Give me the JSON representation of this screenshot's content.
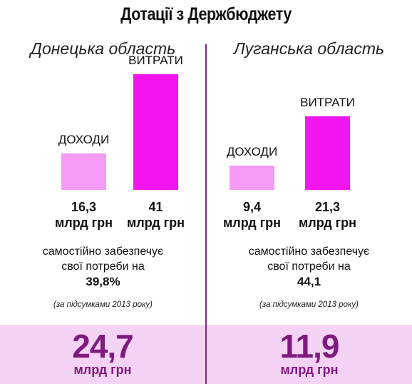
{
  "title": "Дотації з Держбюджету",
  "colors": {
    "income": "#f59af5",
    "expense": "#f215f0",
    "accent": "#7f1a7f",
    "band": "#f4d3f4",
    "divider": "#7d2a7e"
  },
  "chart_data": [
    {
      "type": "bar",
      "title": "Донецька область",
      "categories": [
        "ДОХОДИ",
        "ВИТРАТИ"
      ],
      "values": [
        16.3,
        41
      ],
      "value_labels": [
        [
          "16,3",
          "млрд грн"
        ],
        [
          "41",
          "млрд грн"
        ]
      ],
      "unit": "млрд грн"
    },
    {
      "type": "bar",
      "title": "Луганська область",
      "categories": [
        "ДОХОДИ",
        "ВИТРАТИ"
      ],
      "values": [
        9.4,
        21.3
      ],
      "value_labels": [
        [
          "9,4",
          "млрд грн"
        ],
        [
          "21,3",
          "млрд грн"
        ]
      ],
      "unit": "млрд грн"
    }
  ],
  "panels": [
    {
      "region": "Донецька область",
      "self_line1": "самостійно забезпечує",
      "self_line2": "свої потреби на",
      "self_value": "39,8%",
      "note": "(за підсумками 2013 року)",
      "subsidy_value": "24,7",
      "subsidy_unit": "млрд грн"
    },
    {
      "region": "Луганська область",
      "self_line1": "самостійно забезпечує",
      "self_line2": "свої потреби на",
      "self_value": "44,1",
      "note": "(за підсумками 2013 року)",
      "subsidy_value": "11,9",
      "subsidy_unit": "млрд грн"
    }
  ]
}
